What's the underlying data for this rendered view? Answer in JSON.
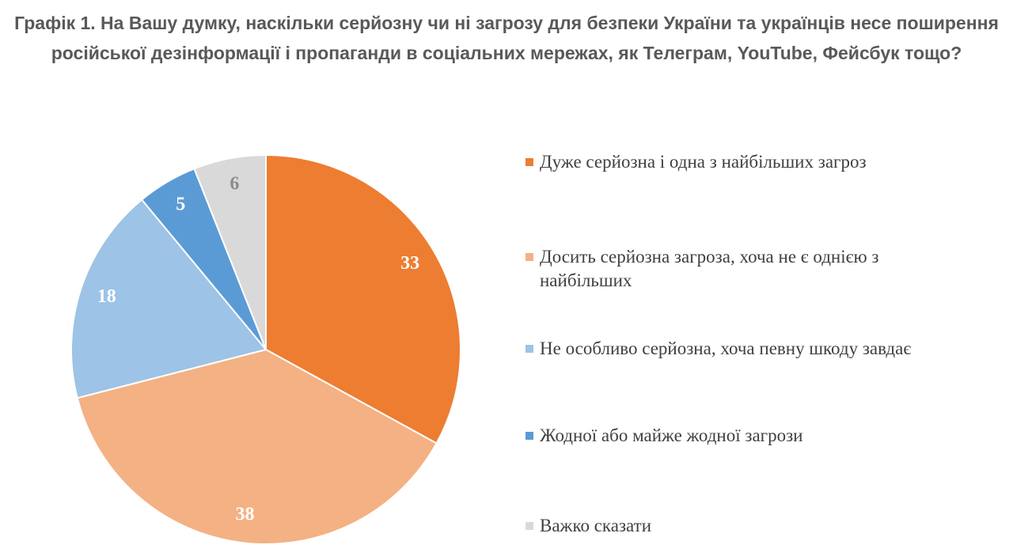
{
  "title": "Графік 1. На Вашу думку, наскільки серйозну чи ні загрозу для безпеки України та українців несе поширення російської дезінформації і пропаганди в соціальних мережах, як Телеграм, YouTube, Фейсбук тощо?",
  "chart_data": {
    "type": "pie",
    "start": "12 o'clock",
    "direction": "clockwise",
    "legend_position": "right",
    "slices": [
      {
        "label": "Дуже серйозна і одна з найбільших загроз",
        "value": 33,
        "display": "33",
        "color": "#ED7D31",
        "label_color": "#FFFFFF"
      },
      {
        "label": "Досить серйозна загроза, хоча не є однією з найбільших",
        "value": 38,
        "display": "38",
        "color": "#F4B183",
        "label_color": "#FFFFFF"
      },
      {
        "label": "Не особливо серйозна, хоча певну шкоду завдає",
        "value": 18,
        "display": "18",
        "color": "#9DC3E6",
        "label_color": "#FFFFFF"
      },
      {
        "label": "Жодної або майже жодної загрози",
        "value": 5,
        "display": "5",
        "color": "#5B9BD5",
        "label_color": "#FFFFFF"
      },
      {
        "label": "Важко сказати",
        "value": 6,
        "display": "6",
        "color": "#D9D9D9",
        "label_color": "#8C8C8C"
      }
    ]
  }
}
